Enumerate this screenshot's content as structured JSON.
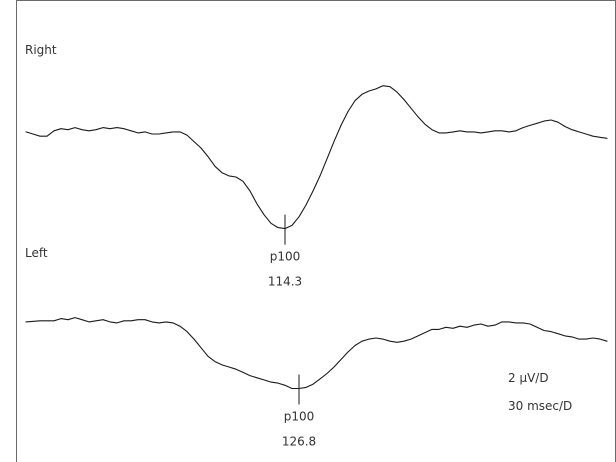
{
  "chart_data": [
    {
      "type": "line",
      "series": [
        {
          "name": "Right",
          "points": [
            [
              0,
              0.75
            ],
            [
              2,
              0.65
            ],
            [
              4,
              0.55
            ],
            [
              6,
              0.55
            ],
            [
              8,
              0.8
            ],
            [
              10,
              0.9
            ],
            [
              12,
              0.85
            ],
            [
              14,
              0.95
            ],
            [
              16,
              0.85
            ],
            [
              18,
              0.8
            ],
            [
              20,
              0.85
            ],
            [
              22,
              0.95
            ],
            [
              24,
              0.9
            ],
            [
              26,
              0.95
            ],
            [
              28,
              0.9
            ],
            [
              30,
              0.8
            ],
            [
              32,
              0.7
            ],
            [
              34,
              0.75
            ],
            [
              36,
              0.65
            ],
            [
              38,
              0.65
            ],
            [
              40,
              0.7
            ],
            [
              42,
              0.75
            ],
            [
              44,
              0.75
            ],
            [
              46,
              0.6
            ],
            [
              48,
              0.3
            ],
            [
              50,
              0.0
            ],
            [
              52,
              -0.4
            ],
            [
              54,
              -0.85
            ],
            [
              56,
              -1.15
            ],
            [
              58,
              -1.3
            ],
            [
              60,
              -1.35
            ],
            [
              62,
              -1.55
            ],
            [
              64,
              -2.0
            ],
            [
              66,
              -2.6
            ],
            [
              68,
              -3.1
            ],
            [
              70,
              -3.5
            ],
            [
              72,
              -3.7
            ],
            [
              74,
              -3.75
            ],
            [
              76,
              -3.6
            ],
            [
              78,
              -3.2
            ],
            [
              80,
              -2.65
            ],
            [
              82,
              -2.0
            ],
            [
              84,
              -1.3
            ],
            [
              86,
              -0.5
            ],
            [
              88,
              0.3
            ],
            [
              90,
              1.05
            ],
            [
              92,
              1.7
            ],
            [
              94,
              2.2
            ],
            [
              96,
              2.5
            ],
            [
              98,
              2.65
            ],
            [
              100,
              2.75
            ],
            [
              102,
              2.9
            ],
            [
              104,
              2.85
            ],
            [
              106,
              2.6
            ],
            [
              108,
              2.25
            ],
            [
              110,
              1.85
            ],
            [
              112,
              1.45
            ],
            [
              114,
              1.1
            ],
            [
              116,
              0.85
            ],
            [
              118,
              0.7
            ],
            [
              120,
              0.7
            ],
            [
              122,
              0.75
            ],
            [
              124,
              0.8
            ],
            [
              126,
              0.75
            ],
            [
              128,
              0.75
            ],
            [
              130,
              0.7
            ],
            [
              132,
              0.75
            ],
            [
              134,
              0.8
            ],
            [
              136,
              0.8
            ],
            [
              138,
              0.75
            ],
            [
              140,
              0.8
            ],
            [
              142,
              0.95
            ],
            [
              144,
              1.05
            ],
            [
              146,
              1.15
            ],
            [
              148,
              1.25
            ],
            [
              150,
              1.3
            ],
            [
              152,
              1.2
            ],
            [
              154,
              1.0
            ],
            [
              156,
              0.85
            ],
            [
              158,
              0.75
            ],
            [
              160,
              0.65
            ],
            [
              162,
              0.55
            ],
            [
              164,
              0.5
            ],
            [
              166,
              0.45
            ]
          ]
        },
        {
          "name": "Left",
          "points": [
            [
              0,
              0.75
            ],
            [
              4,
              0.8
            ],
            [
              8,
              0.8
            ],
            [
              10,
              0.9
            ],
            [
              12,
              0.85
            ],
            [
              14,
              0.95
            ],
            [
              16,
              0.85
            ],
            [
              18,
              0.75
            ],
            [
              20,
              0.8
            ],
            [
              22,
              0.85
            ],
            [
              24,
              0.75
            ],
            [
              26,
              0.7
            ],
            [
              28,
              0.8
            ],
            [
              30,
              0.8
            ],
            [
              32,
              0.85
            ],
            [
              34,
              0.85
            ],
            [
              36,
              0.75
            ],
            [
              38,
              0.7
            ],
            [
              40,
              0.75
            ],
            [
              42,
              0.7
            ],
            [
              44,
              0.55
            ],
            [
              46,
              0.3
            ],
            [
              48,
              -0.05
            ],
            [
              50,
              -0.45
            ],
            [
              52,
              -0.85
            ],
            [
              54,
              -1.1
            ],
            [
              56,
              -1.25
            ],
            [
              58,
              -1.35
            ],
            [
              60,
              -1.45
            ],
            [
              62,
              -1.6
            ],
            [
              64,
              -1.75
            ],
            [
              66,
              -1.85
            ],
            [
              68,
              -1.95
            ],
            [
              70,
              -2.05
            ],
            [
              72,
              -2.1
            ],
            [
              74,
              -2.2
            ],
            [
              76,
              -2.35
            ],
            [
              78,
              -2.35
            ],
            [
              80,
              -2.3
            ],
            [
              82,
              -2.15
            ],
            [
              84,
              -1.9
            ],
            [
              86,
              -1.65
            ],
            [
              88,
              -1.35
            ],
            [
              90,
              -1.0
            ],
            [
              92,
              -0.65
            ],
            [
              94,
              -0.35
            ],
            [
              96,
              -0.15
            ],
            [
              98,
              -0.05
            ],
            [
              100,
              0.0
            ],
            [
              102,
              -0.05
            ],
            [
              104,
              -0.15
            ],
            [
              106,
              -0.2
            ],
            [
              108,
              -0.15
            ],
            [
              110,
              -0.05
            ],
            [
              112,
              0.1
            ],
            [
              114,
              0.25
            ],
            [
              116,
              0.4
            ],
            [
              118,
              0.4
            ],
            [
              120,
              0.5
            ],
            [
              122,
              0.45
            ],
            [
              124,
              0.55
            ],
            [
              126,
              0.5
            ],
            [
              128,
              0.6
            ],
            [
              130,
              0.65
            ],
            [
              132,
              0.55
            ],
            [
              134,
              0.6
            ],
            [
              136,
              0.75
            ],
            [
              138,
              0.75
            ],
            [
              140,
              0.7
            ],
            [
              142,
              0.7
            ],
            [
              144,
              0.65
            ],
            [
              146,
              0.5
            ],
            [
              148,
              0.35
            ],
            [
              150,
              0.3
            ],
            [
              152,
              0.2
            ],
            [
              154,
              0.1
            ],
            [
              156,
              0.05
            ],
            [
              158,
              -0.05
            ],
            [
              160,
              -0.05
            ],
            [
              162,
              0.0
            ],
            [
              164,
              -0.05
            ],
            [
              166,
              -0.15
            ]
          ]
        }
      ],
      "annotations": [
        {
          "series": "Right",
          "label": "p100",
          "value_label": "114.3",
          "x": 74
        },
        {
          "series": "Left",
          "label": "p100",
          "value_label": "126.8",
          "x": 78
        }
      ],
      "scale": [
        "2 μV/D",
        "30 msec/D"
      ],
      "grid": false
    }
  ]
}
